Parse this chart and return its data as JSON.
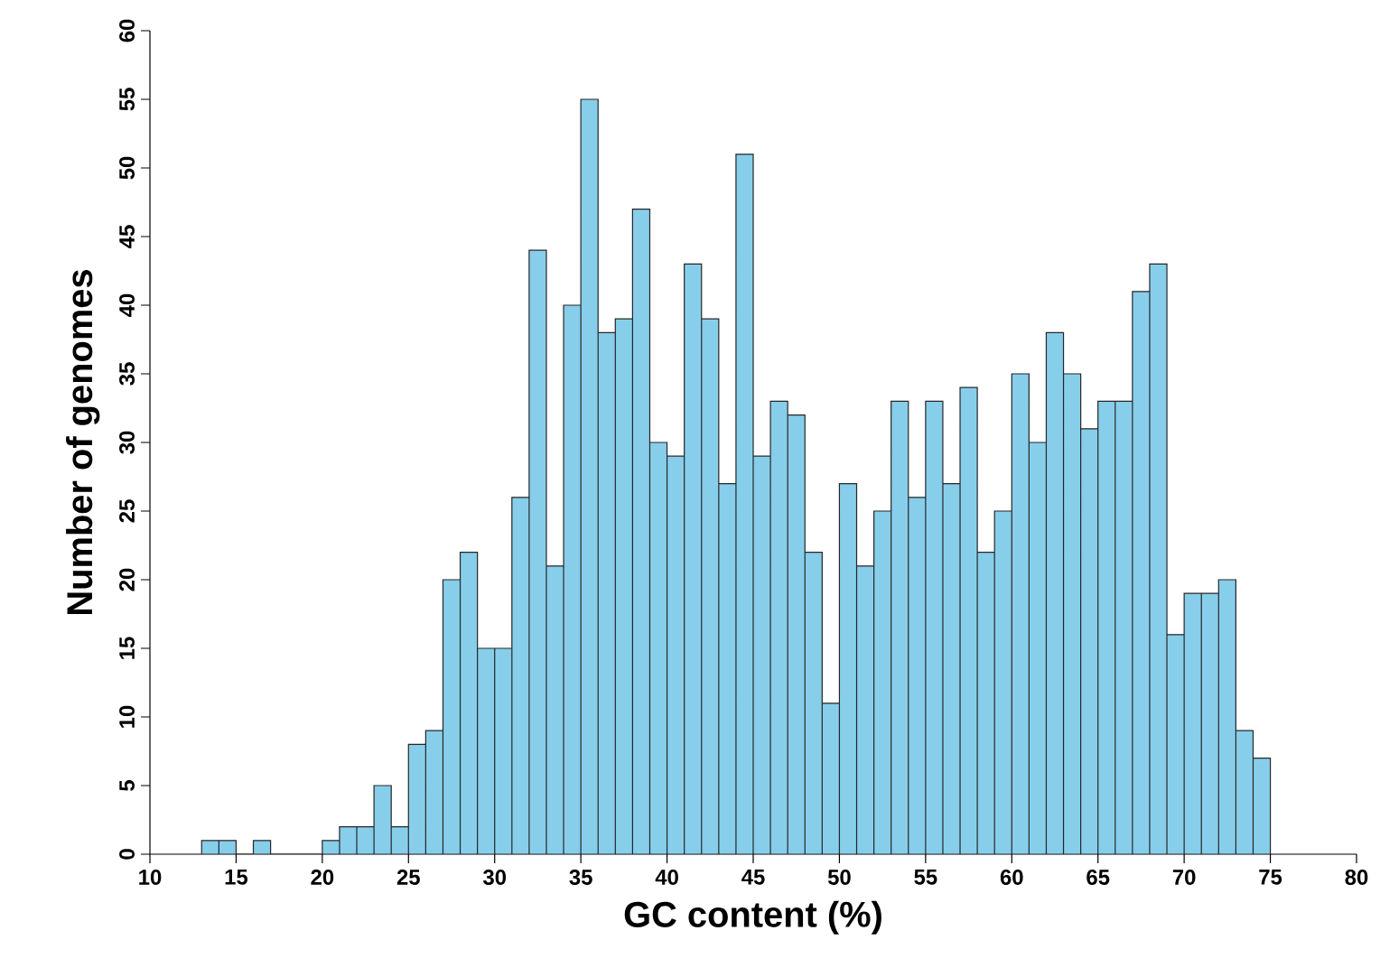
{
  "chart_data": {
    "type": "histogram",
    "xlabel": "GC content (%)",
    "ylabel": "Number of genomes",
    "bins": [
      13,
      14,
      15,
      16,
      17,
      18,
      19,
      20,
      21,
      22,
      23,
      24,
      25,
      26,
      27,
      28,
      29,
      30,
      31,
      32,
      33,
      34,
      35,
      36,
      37,
      38,
      39,
      40,
      41,
      42,
      43,
      44,
      45,
      46,
      47,
      48,
      49,
      50,
      51,
      52,
      53,
      54,
      55,
      56,
      57,
      58,
      59,
      60,
      61,
      62,
      63,
      64,
      65,
      66,
      67,
      68,
      69,
      70,
      71,
      72,
      73,
      74,
      75
    ],
    "values": [
      1,
      1,
      0,
      1,
      0,
      0,
      0,
      1,
      2,
      2,
      5,
      2,
      8,
      9,
      20,
      22,
      15,
      15,
      26,
      44,
      21,
      40,
      55,
      38,
      39,
      47,
      30,
      29,
      43,
      39,
      27,
      51,
      29,
      33,
      32,
      22,
      11,
      27,
      21,
      25,
      33,
      26,
      33,
      27,
      34,
      22,
      25,
      35,
      30,
      38,
      35,
      31,
      33,
      33,
      41,
      43,
      16,
      19,
      19,
      20,
      9,
      7
    ],
    "color": "#87ceeb",
    "xlim": [
      10,
      80
    ],
    "ylim": [
      0,
      60
    ],
    "xticks": [
      10,
      15,
      20,
      25,
      30,
      35,
      40,
      45,
      50,
      55,
      60,
      65,
      70,
      75,
      80
    ],
    "yticks": [
      0,
      5,
      10,
      15,
      20,
      25,
      30,
      35,
      40,
      45,
      50,
      55,
      60
    ],
    "grid": false
  }
}
